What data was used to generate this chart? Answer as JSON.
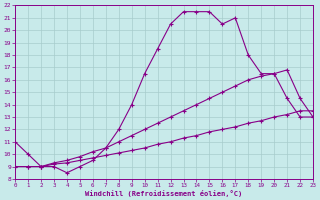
{
  "xlabel": "Windchill (Refroidissement éolien,°C)",
  "xlim": [
    0,
    23
  ],
  "ylim": [
    8,
    22
  ],
  "xticks": [
    0,
    1,
    2,
    3,
    4,
    5,
    6,
    7,
    8,
    9,
    10,
    11,
    12,
    13,
    14,
    15,
    16,
    17,
    18,
    19,
    20,
    21,
    22,
    23
  ],
  "yticks": [
    8,
    9,
    10,
    11,
    12,
    13,
    14,
    15,
    16,
    17,
    18,
    19,
    20,
    21,
    22
  ],
  "bg_color": "#c8eaea",
  "grid_color": "#a8cccc",
  "line_color": "#880088",
  "line1_x": [
    0,
    1,
    2,
    3,
    4,
    5,
    6,
    7,
    8,
    9,
    10,
    11,
    12,
    13,
    14,
    15,
    16,
    17,
    18,
    19,
    20,
    21,
    22,
    23
  ],
  "line1_y": [
    11,
    10,
    9,
    9,
    8.5,
    9,
    9.5,
    10.5,
    12,
    14,
    16.5,
    18.5,
    20.5,
    21.5,
    21.5,
    21.5,
    20.5,
    21,
    18,
    16.5,
    16.5,
    14.5,
    13,
    13
  ],
  "line2_x": [
    0,
    1,
    2,
    3,
    4,
    5,
    6,
    7,
    8,
    9,
    10,
    11,
    12,
    13,
    14,
    15,
    16,
    17,
    18,
    19,
    20,
    21,
    22,
    23
  ],
  "line2_y": [
    9,
    9,
    9,
    9.2,
    9.3,
    9.5,
    9.7,
    9.9,
    10.1,
    10.3,
    10.5,
    10.8,
    11.0,
    11.3,
    11.5,
    11.8,
    12.0,
    12.2,
    12.5,
    12.7,
    13.0,
    13.2,
    13.5,
    13.5
  ],
  "line3_x": [
    0,
    1,
    2,
    3,
    4,
    5,
    6,
    7,
    8,
    9,
    10,
    11,
    12,
    13,
    14,
    15,
    16,
    17,
    18,
    19,
    20,
    21,
    22,
    23
  ],
  "line3_y": [
    9,
    9,
    9,
    9.3,
    9.5,
    9.8,
    10.2,
    10.5,
    11.0,
    11.5,
    12.0,
    12.5,
    13.0,
    13.5,
    14.0,
    14.5,
    15.0,
    15.5,
    16.0,
    16.3,
    16.5,
    16.8,
    14.5,
    13.0
  ]
}
